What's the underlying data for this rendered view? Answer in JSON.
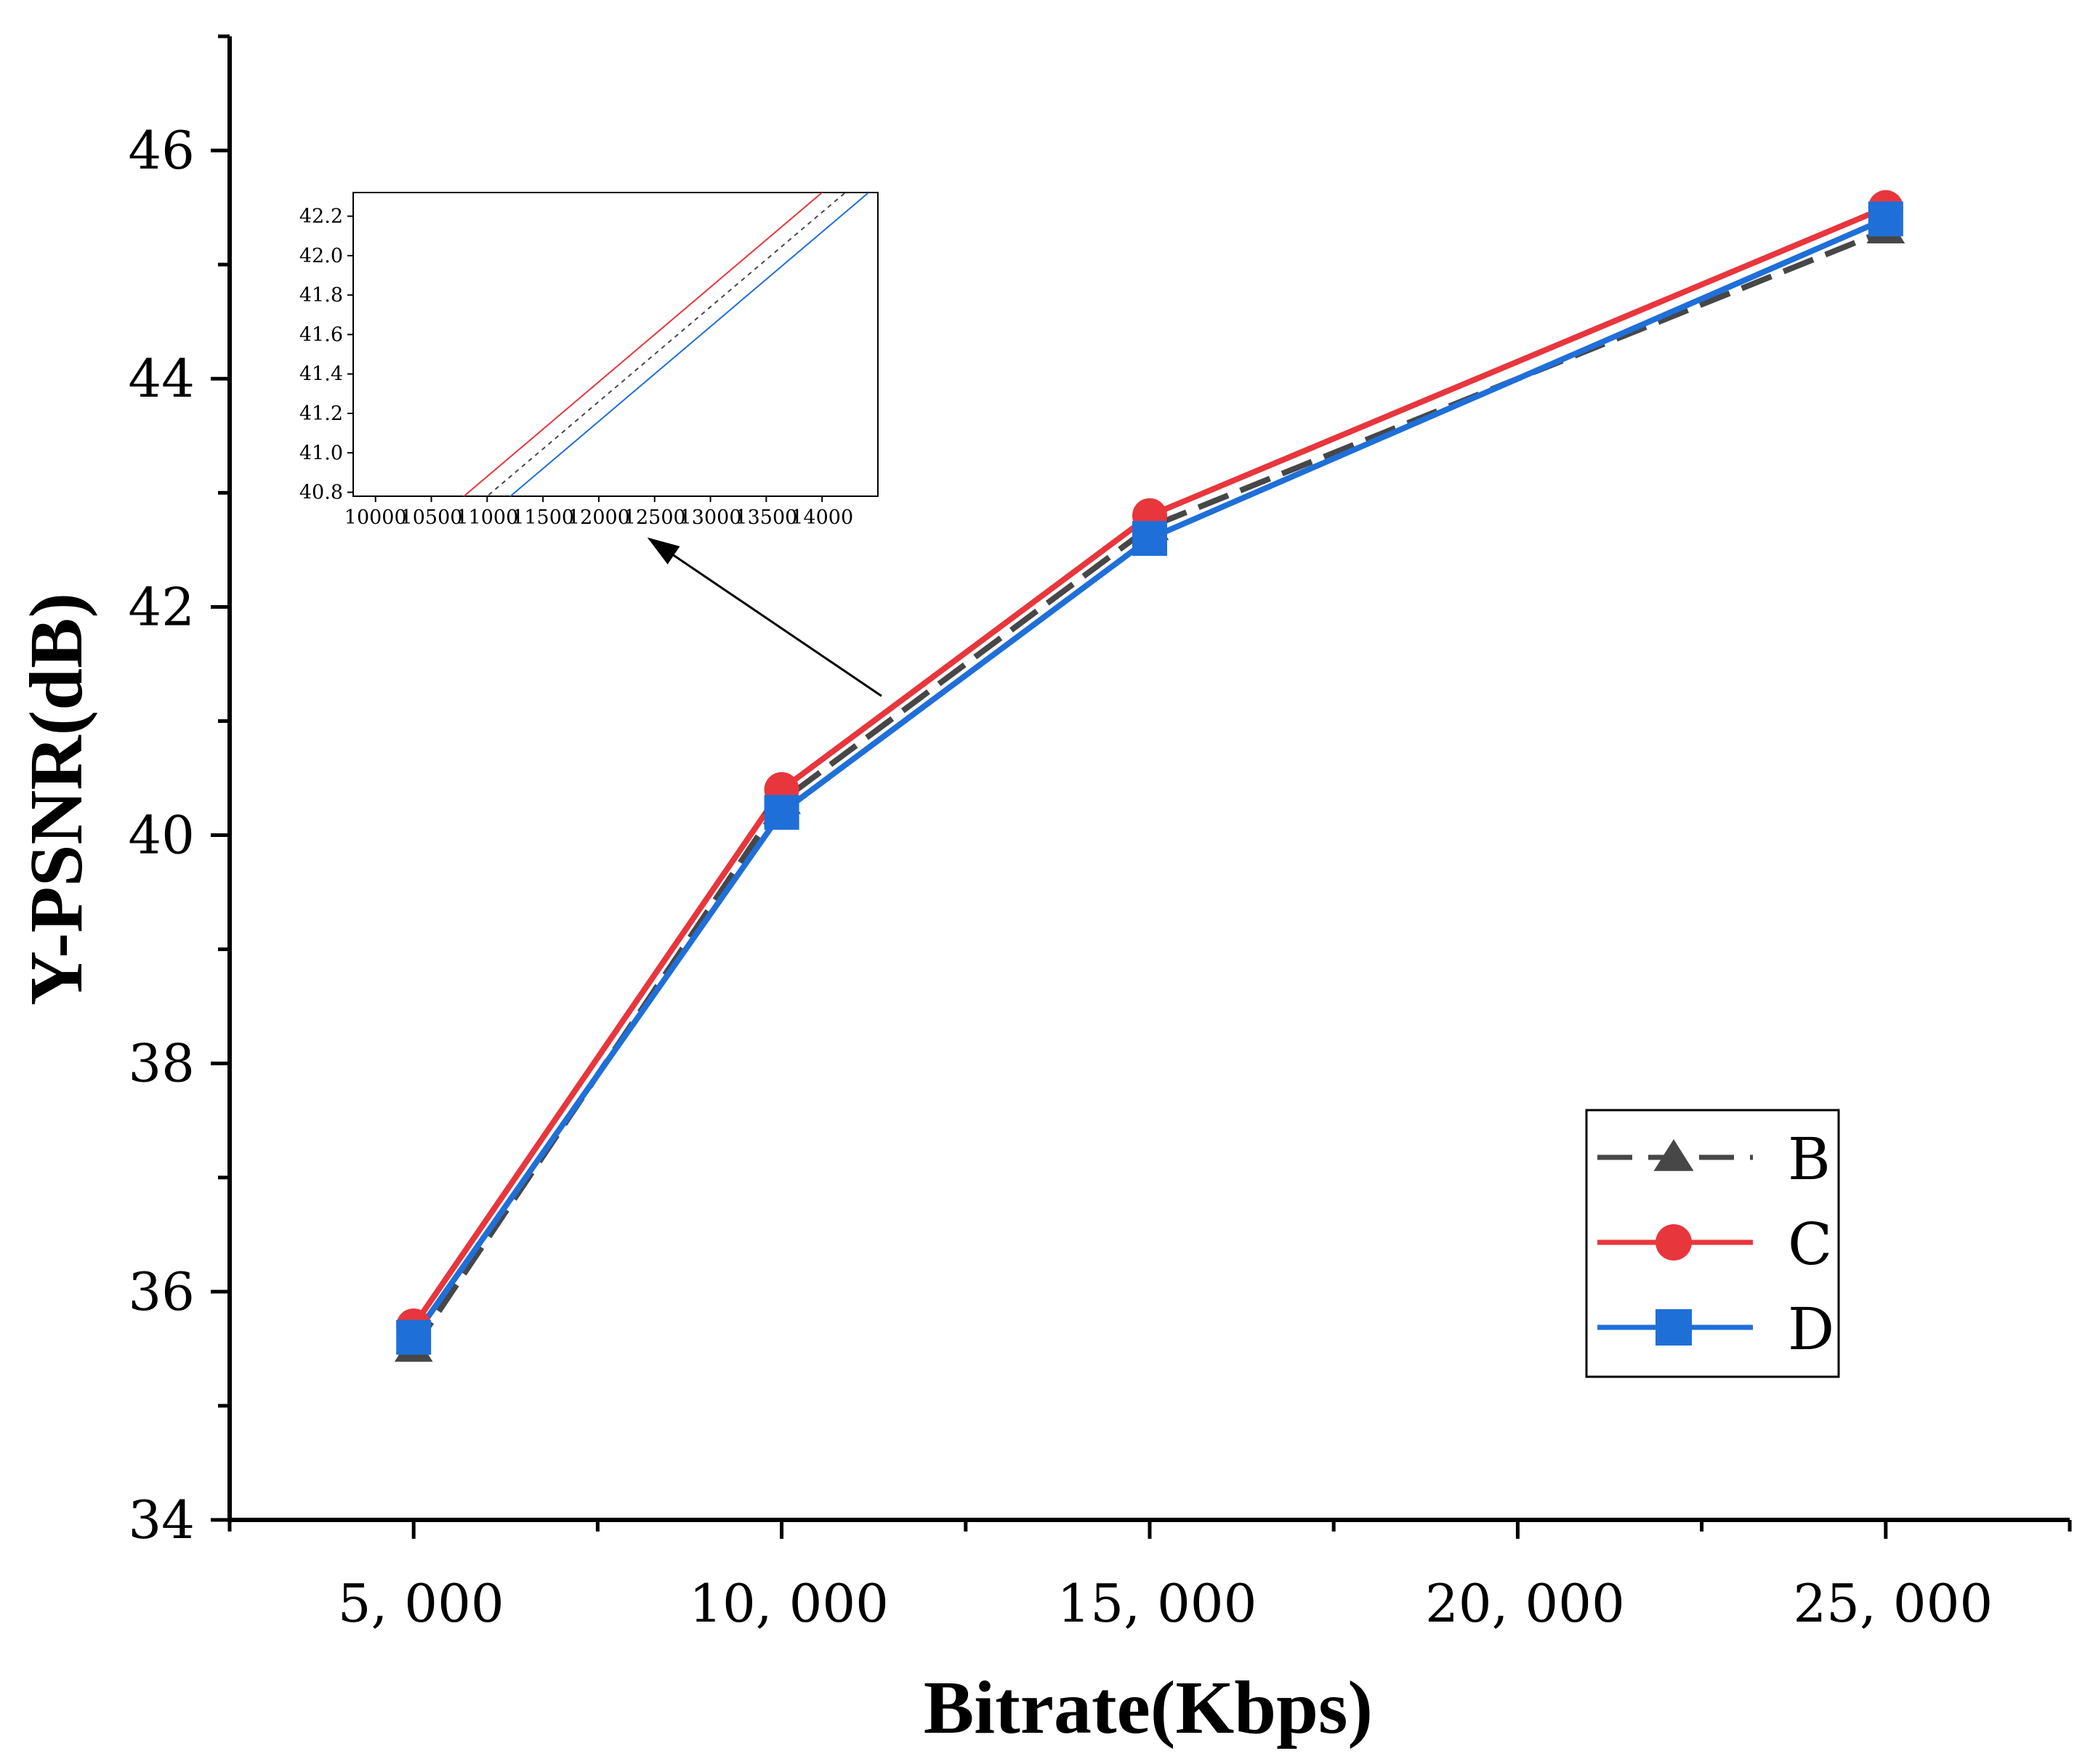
{
  "chart_data": {
    "type": "line",
    "title": "",
    "xlabel": "Bitrate(Kbps)",
    "ylabel": "Y-PSNR(dB)",
    "xlim": [
      2500,
      27500
    ],
    "ylim": [
      34,
      47
    ],
    "xticks": [
      5000,
      10000,
      15000,
      20000,
      25000
    ],
    "xtick_labels": [
      "5, 000",
      "10, 000",
      "15, 000",
      "20, 000",
      "25, 000"
    ],
    "yticks": [
      34,
      36,
      38,
      40,
      42,
      44,
      46
    ],
    "ytick_labels": [
      "34",
      "36",
      "38",
      "40",
      "42",
      "44",
      "46"
    ],
    "x": [
      5000,
      10000,
      15000,
      25000
    ],
    "series": [
      {
        "name": "B",
        "values": [
          35.5,
          40.3,
          42.7,
          45.3
        ],
        "color": "#474747",
        "marker": "triangle",
        "dash": true
      },
      {
        "name": "C",
        "values": [
          35.7,
          40.4,
          42.8,
          45.5
        ],
        "color": "#e8363d",
        "marker": "circle",
        "dash": false
      },
      {
        "name": "D",
        "values": [
          35.6,
          40.2,
          42.6,
          45.4
        ],
        "color": "#1f6fd9",
        "marker": "square",
        "dash": false
      }
    ],
    "legend": {
      "position": "bottom-right",
      "entries": [
        "B",
        "C",
        "D"
      ]
    },
    "grid": false,
    "inset": {
      "type": "line",
      "xlim": [
        9800,
        14500
      ],
      "ylim": [
        40.78,
        42.32
      ],
      "xticks": [
        10000,
        10500,
        11000,
        11500,
        12000,
        12500,
        13000,
        13500,
        14000
      ],
      "xtick_labels": [
        "10000",
        "10500",
        "11000",
        "11500",
        "12000",
        "12500",
        "13000",
        "13500",
        "14000"
      ],
      "yticks": [
        40.8,
        41.0,
        41.2,
        41.4,
        41.6,
        41.8,
        42.0,
        42.2
      ],
      "ytick_labels": [
        "40.8",
        "41.0",
        "41.2",
        "41.4",
        "41.6",
        "41.8",
        "42.0",
        "42.2"
      ],
      "annotation": "arrow pointing from main plot near 10,000 Kbps to inset"
    }
  }
}
